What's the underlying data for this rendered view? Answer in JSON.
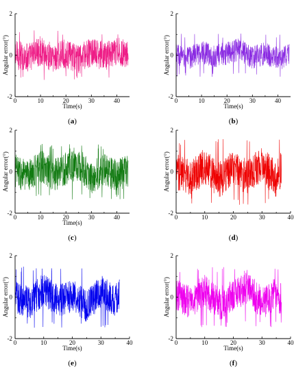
{
  "chart_data": [
    {
      "type": "line",
      "caption": "(a)",
      "color": "#ee1c86",
      "xlabel": "Time(s)",
      "ylabel": "Angular error(°)",
      "xlim": [
        0,
        45
      ],
      "ylim": [
        -2,
        2
      ],
      "xticks": [
        0,
        10,
        20,
        30,
        40
      ],
      "yticks": [
        -2,
        0,
        2
      ],
      "x_range": [
        0,
        44.5
      ],
      "noise": {
        "amplitude_typical": 0.45,
        "peak": 1.2
      },
      "series": [
        {
          "x": [
            0,
            5,
            10,
            15,
            20,
            25,
            30,
            35,
            40,
            44.5
          ],
          "y": [
            0.05,
            -0.3,
            0.6,
            -0.4,
            0.2,
            -0.6,
            0.4,
            -0.2,
            0.5,
            0.1
          ]
        }
      ]
    },
    {
      "type": "line",
      "caption": "(b)",
      "color": "#8a2be2",
      "xlabel": "Time(s)",
      "ylabel": "Angular error(°)",
      "xlim": [
        0,
        45
      ],
      "ylim": [
        -2,
        2
      ],
      "xticks": [
        0,
        10,
        20,
        30,
        40
      ],
      "yticks": [
        -2,
        0,
        2
      ],
      "x_range": [
        0,
        44.5
      ],
      "noise": {
        "amplitude_typical": 0.35,
        "peak": 1.05
      },
      "series": [
        {
          "x": [
            0,
            5,
            10,
            15,
            20,
            25,
            30,
            35,
            40,
            44.5
          ],
          "y": [
            0.1,
            -0.4,
            0.5,
            -0.2,
            0.3,
            0.8,
            -0.3,
            0.2,
            -0.5,
            0.0
          ]
        }
      ]
    },
    {
      "type": "line",
      "caption": "(c)",
      "color": "#117a11",
      "xlabel": "Time(s)",
      "ylabel": "Angular error(°)",
      "xlim": [
        0,
        45
      ],
      "ylim": [
        -2,
        2
      ],
      "xticks": [
        0,
        10,
        20,
        30,
        40
      ],
      "yticks": [
        -2,
        0,
        2
      ],
      "x_range": [
        0,
        44.5
      ],
      "noise": {
        "amplitude_typical": 0.5,
        "peak": 1.35
      },
      "series": [
        {
          "x": [
            0,
            5,
            10,
            15,
            20,
            25,
            30,
            35,
            40,
            44.5
          ],
          "y": [
            0.2,
            -0.8,
            0.9,
            -0.5,
            0.4,
            1.1,
            -0.9,
            0.3,
            -0.6,
            0.1
          ]
        }
      ]
    },
    {
      "type": "line",
      "caption": "(d)",
      "color": "#ee0000",
      "xlabel": "",
      "ylabel": "Angular error(°)",
      "xlim": [
        0,
        40
      ],
      "ylim": [
        -2,
        2
      ],
      "xticks": [
        0,
        10,
        20,
        30,
        40
      ],
      "yticks": [
        -2,
        0,
        2
      ],
      "x_range": [
        0,
        36.8
      ],
      "noise": {
        "amplitude_typical": 0.55,
        "peak": 1.6
      },
      "series": [
        {
          "x": [
            0,
            5,
            10,
            15,
            20,
            25,
            30,
            35,
            36.8
          ],
          "y": [
            0.1,
            -0.9,
            0.8,
            -1.2,
            0.5,
            -0.7,
            1.0,
            -1.1,
            0.3
          ]
        }
      ]
    },
    {
      "type": "line",
      "caption": "(e)",
      "color": "#0000ee",
      "xlabel": "Time(s)",
      "ylabel": "Angular error(°)",
      "xlim": [
        0,
        40
      ],
      "ylim": [
        -2,
        2
      ],
      "xticks": [
        0,
        10,
        20,
        30,
        40
      ],
      "yticks": [
        -2,
        0,
        2
      ],
      "x_range": [
        0,
        36.5
      ],
      "noise": {
        "amplitude_typical": 0.5,
        "peak": 1.5
      },
      "series": [
        {
          "x": [
            0,
            5,
            10,
            15,
            20,
            25,
            30,
            35,
            36.5
          ],
          "y": [
            0.1,
            -0.9,
            1.1,
            -0.6,
            0.3,
            -1.2,
            0.8,
            -0.4,
            0.2
          ]
        }
      ]
    },
    {
      "type": "line",
      "caption": "(f)",
      "color": "#ee00ee",
      "xlabel": "Time(s)",
      "ylabel": "Angular error(°)",
      "xlim": [
        0,
        40
      ],
      "ylim": [
        -2,
        2
      ],
      "xticks": [
        0,
        10,
        20,
        30,
        40
      ],
      "yticks": [
        -2,
        0,
        2
      ],
      "x_range": [
        0,
        36.8
      ],
      "noise": {
        "amplitude_typical": 0.5,
        "peak": 1.45
      },
      "series": [
        {
          "x": [
            0,
            5,
            10,
            15,
            20,
            25,
            30,
            35,
            36.8
          ],
          "y": [
            0.2,
            -0.7,
            0.9,
            -1.0,
            0.4,
            1.2,
            -0.8,
            0.5,
            -0.3
          ]
        }
      ]
    }
  ]
}
